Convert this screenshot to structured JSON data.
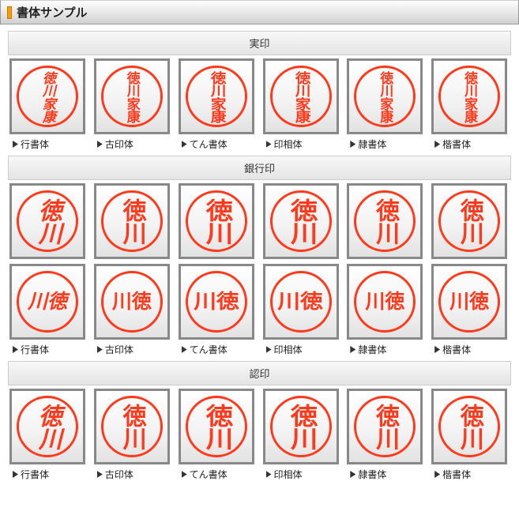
{
  "header": {
    "title": "書体サンプル"
  },
  "font_styles": [
    "行書体",
    "古印体",
    "てん書体",
    "印相体",
    "隷書体",
    "楷書体"
  ],
  "sections": [
    {
      "title": "実印",
      "rows": [
        {
          "text": "徳川家康",
          "layout": "v2col",
          "size": "seal-med"
        }
      ]
    },
    {
      "title": "銀行印",
      "rows": [
        {
          "text": "徳川",
          "layout": "v1col",
          "size": "seal-large"
        },
        {
          "text": "徳川",
          "layout": "h1row",
          "size": "seal-small"
        }
      ]
    },
    {
      "title": "認印",
      "rows": [
        {
          "text": "徳川",
          "layout": "v1col",
          "size": "seal-large"
        }
      ]
    }
  ],
  "seal_style": {
    "circle_border_color": "#ff3a1c",
    "text_color": "#ff3a1c",
    "box_border_color": "#888888",
    "box_bg_gradient": [
      "#ffffff",
      "#e2e2e2"
    ]
  }
}
